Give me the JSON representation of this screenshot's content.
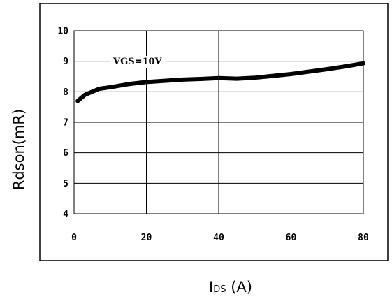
{
  "chart_data": {
    "type": "line",
    "title": "",
    "xlabel": {
      "main": "I",
      "sub": "DS",
      "unit": " (A)"
    },
    "ylabel": "Rdson(mR)",
    "xlim": [
      0,
      80
    ],
    "ylim": [
      4,
      10
    ],
    "x_ticks": [
      "0",
      "20",
      "40",
      "60",
      "80"
    ],
    "y_ticks": [
      "4",
      "5",
      "6",
      "7",
      "8",
      "9",
      "10"
    ],
    "grid": true,
    "annotation": "VGS=10V",
    "series": [
      {
        "x": [
          1,
          3,
          5,
          7,
          10,
          15,
          20,
          25,
          30,
          35,
          40,
          45,
          50,
          55,
          60,
          65,
          70,
          75,
          80
        ],
        "values": [
          7.7,
          7.9,
          8.0,
          8.1,
          8.15,
          8.25,
          8.32,
          8.36,
          8.4,
          8.42,
          8.45,
          8.43,
          8.46,
          8.52,
          8.58,
          8.66,
          8.74,
          8.83,
          8.93
        ]
      }
    ]
  }
}
